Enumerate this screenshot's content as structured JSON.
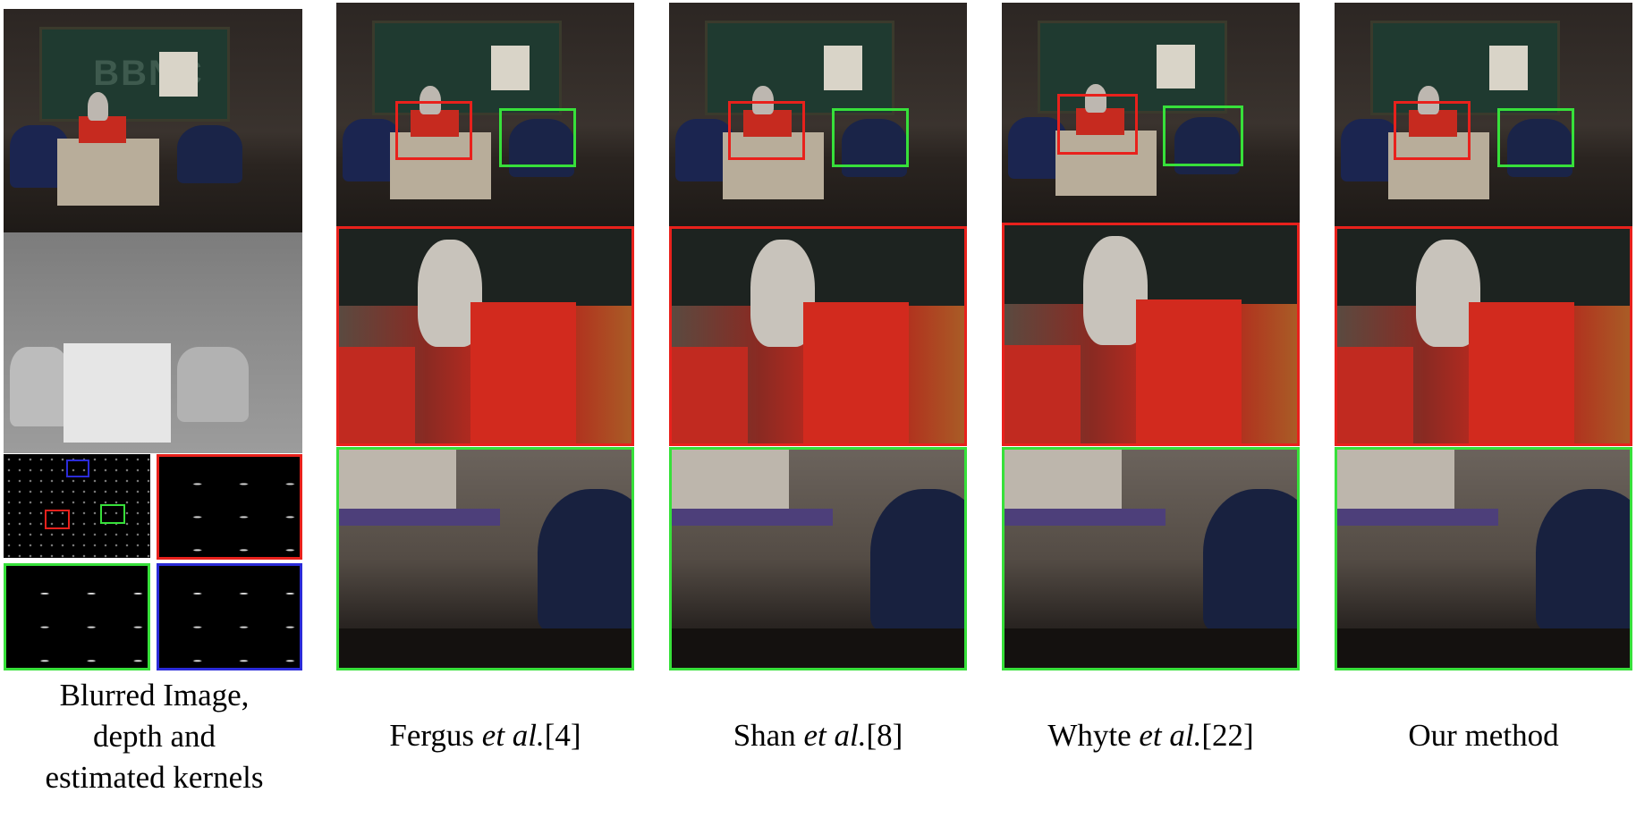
{
  "figure": {
    "captions": [
      {
        "id": "blurred",
        "lines": [
          "Blurred Image,",
          "depth and",
          "estimated kernels"
        ]
      },
      {
        "id": "fergus",
        "prefix": "Fergus ",
        "etal": "et al.",
        "ref": "[4]"
      },
      {
        "id": "shan",
        "prefix": "Shan ",
        "etal": "et al.",
        "ref": "[8]"
      },
      {
        "id": "whyte",
        "prefix": "Whyte ",
        "etal": "et al.",
        "ref": "[22]"
      },
      {
        "id": "ours",
        "text": "Our method"
      }
    ],
    "board_text": "BBNC",
    "colors": {
      "red_box": "#e8211c",
      "green_box": "#37e03a",
      "blue_box": "#2b2bd8"
    }
  }
}
